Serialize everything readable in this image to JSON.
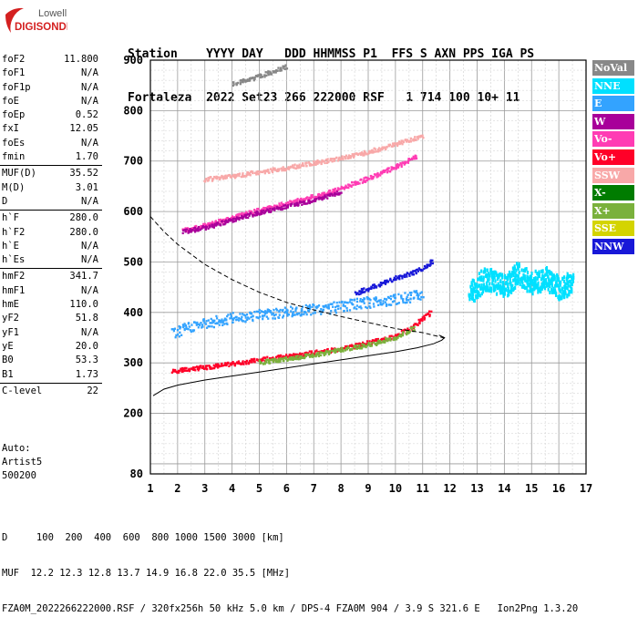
{
  "logo": {
    "line1": "Lowell",
    "line2": "DIGISONDE"
  },
  "header": {
    "row1": "Station    YYYY DAY   DDD HHMMSS P1  FFS S AXN PPS IGA PS",
    "row2": "Fortaleza  2022 Set23 266 222000 RSF   1 714 100 10+ 11"
  },
  "params": [
    [
      {
        "k": "foF2",
        "v": "11.800"
      },
      {
        "k": "foF1",
        "v": "N/A"
      },
      {
        "k": "foF1p",
        "v": "N/A"
      },
      {
        "k": "foE",
        "v": "N/A"
      },
      {
        "k": "foEp",
        "v": "0.52"
      },
      {
        "k": "fxI",
        "v": "12.05"
      },
      {
        "k": "foEs",
        "v": "N/A"
      },
      {
        "k": "fmin",
        "v": "1.70"
      }
    ],
    [
      {
        "k": "MUF(D)",
        "v": "35.52"
      },
      {
        "k": "M(D)",
        "v": "3.01"
      },
      {
        "k": "D",
        "v": "N/A"
      }
    ],
    [
      {
        "k": "h`F",
        "v": "280.0"
      },
      {
        "k": "h`F2",
        "v": "280.0"
      },
      {
        "k": "h`E",
        "v": "N/A"
      },
      {
        "k": "h`Es",
        "v": "N/A"
      }
    ],
    [
      {
        "k": "hmF2",
        "v": "341.7"
      },
      {
        "k": "hmF1",
        "v": "N/A"
      },
      {
        "k": "hmE",
        "v": "110.0"
      },
      {
        "k": "yF2",
        "v": "51.8"
      },
      {
        "k": "yF1",
        "v": "N/A"
      },
      {
        "k": "yE",
        "v": "20.0"
      },
      {
        "k": "B0",
        "v": "53.3"
      },
      {
        "k": "B1",
        "v": "1.73"
      }
    ],
    [
      {
        "k": "C-level",
        "v": "22"
      }
    ]
  ],
  "auto": {
    "line1": "Auto:",
    "line2": "Artist5",
    "line3": "500200"
  },
  "legend": [
    {
      "label": "NoVal",
      "color": "#888888"
    },
    {
      "label": "NNE",
      "color": "#00e0ff"
    },
    {
      "label": "E",
      "color": "#33a3ff"
    },
    {
      "label": "W",
      "color": "#a8009a"
    },
    {
      "label": "Vo-",
      "color": "#ff3cb4"
    },
    {
      "label": "Vo+",
      "color": "#ff0028"
    },
    {
      "label": "SSW",
      "color": "#f8a8a8"
    },
    {
      "label": "X-",
      "color": "#007c00"
    },
    {
      "label": "X+",
      "color": "#7ab13c"
    },
    {
      "label": "SSE",
      "color": "#d4d400"
    },
    {
      "label": "NNW",
      "color": "#1818d8"
    }
  ],
  "footer": {
    "line1": "D     100  200  400  600  800 1000 1500 3000 [km]",
    "line2": "MUF  12.2 12.3 12.8 13.7 14.9 16.8 22.0 35.5 [MHz]",
    "line3": "FZA0M_2022266222000.RSF / 320fx256h 50 kHz 5.0 km / DPS-4 FZA0M 904 / 3.9 S 321.6 E   Ion2Png 1.3.20"
  },
  "chart_data": {
    "type": "scatter",
    "title": "",
    "xlabel": "",
    "ylabel": "",
    "xlim": [
      1,
      17
    ],
    "ylim": [
      80,
      900
    ],
    "xticks": [
      1,
      2,
      3,
      4,
      5,
      6,
      7,
      8,
      9,
      10,
      11,
      12,
      13,
      14,
      15,
      16,
      17
    ],
    "yticks": [
      80,
      200,
      300,
      400,
      500,
      600,
      700,
      800,
      900
    ],
    "grid": true,
    "legend_position": "right",
    "traces": [
      {
        "color_key": "Vo+",
        "x": [
          1.8,
          2.5,
          3.3,
          4.0,
          5.0,
          6.0,
          7.0,
          8.0,
          9.0,
          9.8,
          10.5,
          11.0,
          11.3
        ],
        "y": [
          285,
          290,
          295,
          300,
          308,
          315,
          322,
          330,
          342,
          352,
          368,
          390,
          405
        ]
      },
      {
        "color_key": "X+",
        "x": [
          5.0,
          6.0,
          7.0,
          8.0,
          9.0,
          10.0,
          10.7
        ],
        "y": [
          303,
          310,
          318,
          328,
          338,
          352,
          372
        ]
      },
      {
        "color_key": "Vo-",
        "x": [
          2.2,
          3.0,
          4.0,
          5.0,
          6.0,
          7.0,
          8.0,
          9.0,
          10.0,
          10.8
        ],
        "y": [
          565,
          575,
          590,
          605,
          618,
          632,
          648,
          668,
          690,
          712
        ]
      },
      {
        "color_key": "W",
        "x": [
          2.2,
          3.0,
          4.0,
          5.0,
          6.0,
          7.0,
          8.0
        ],
        "y": [
          562,
          570,
          585,
          600,
          612,
          625,
          640
        ]
      },
      {
        "color_key": "E",
        "x": [
          1.8,
          2.5,
          3.5,
          4.5,
          5.5,
          6.5,
          7.5,
          8.5,
          9.5,
          10.5,
          11.0
        ],
        "y": [
          360,
          375,
          385,
          395,
          400,
          405,
          410,
          418,
          425,
          432,
          440
        ]
      },
      {
        "color_key": "NNW",
        "x": [
          8.5,
          9.3,
          10.0,
          10.5,
          11.0,
          11.4
        ],
        "y": [
          440,
          455,
          470,
          478,
          490,
          505
        ]
      },
      {
        "color_key": "SSW",
        "x": [
          3.0,
          4.0,
          5.0,
          6.0,
          7.0,
          8.0,
          9.0,
          10.0,
          11.0
        ],
        "y": [
          665,
          672,
          680,
          688,
          698,
          708,
          720,
          735,
          752
        ]
      },
      {
        "color_key": "NoVal",
        "x": [
          4.0,
          4.5,
          5.0,
          5.5,
          6.0
        ],
        "y": [
          855,
          862,
          870,
          880,
          890
        ]
      },
      {
        "color_key": "NNE",
        "x": [
          12.7,
          13.3,
          14.0,
          14.5,
          15.0,
          15.5,
          16.0,
          16.5
        ],
        "y": [
          440,
          470,
          455,
          480,
          460,
          470,
          450,
          465
        ]
      }
    ],
    "curves": [
      {
        "style": "solid",
        "x": [
          1.1,
          1.5,
          2.0,
          3.0,
          4.0,
          5.0,
          6.0,
          7.0,
          8.0,
          9.0,
          10.0,
          10.8,
          11.4,
          11.7,
          11.8,
          11.6
        ],
        "y": [
          235,
          248,
          256,
          266,
          274,
          282,
          290,
          298,
          306,
          314,
          322,
          330,
          338,
          345,
          350,
          355
        ]
      },
      {
        "style": "dashed",
        "x": [
          1.0,
          1.5,
          2.0,
          3.0,
          4.0,
          5.0,
          6.0,
          7.0,
          8.0,
          9.0,
          10.0,
          11.0,
          11.6,
          11.9
        ],
        "y": [
          590,
          560,
          535,
          495,
          465,
          440,
          420,
          405,
          392,
          380,
          368,
          360,
          352,
          348
        ]
      }
    ]
  }
}
